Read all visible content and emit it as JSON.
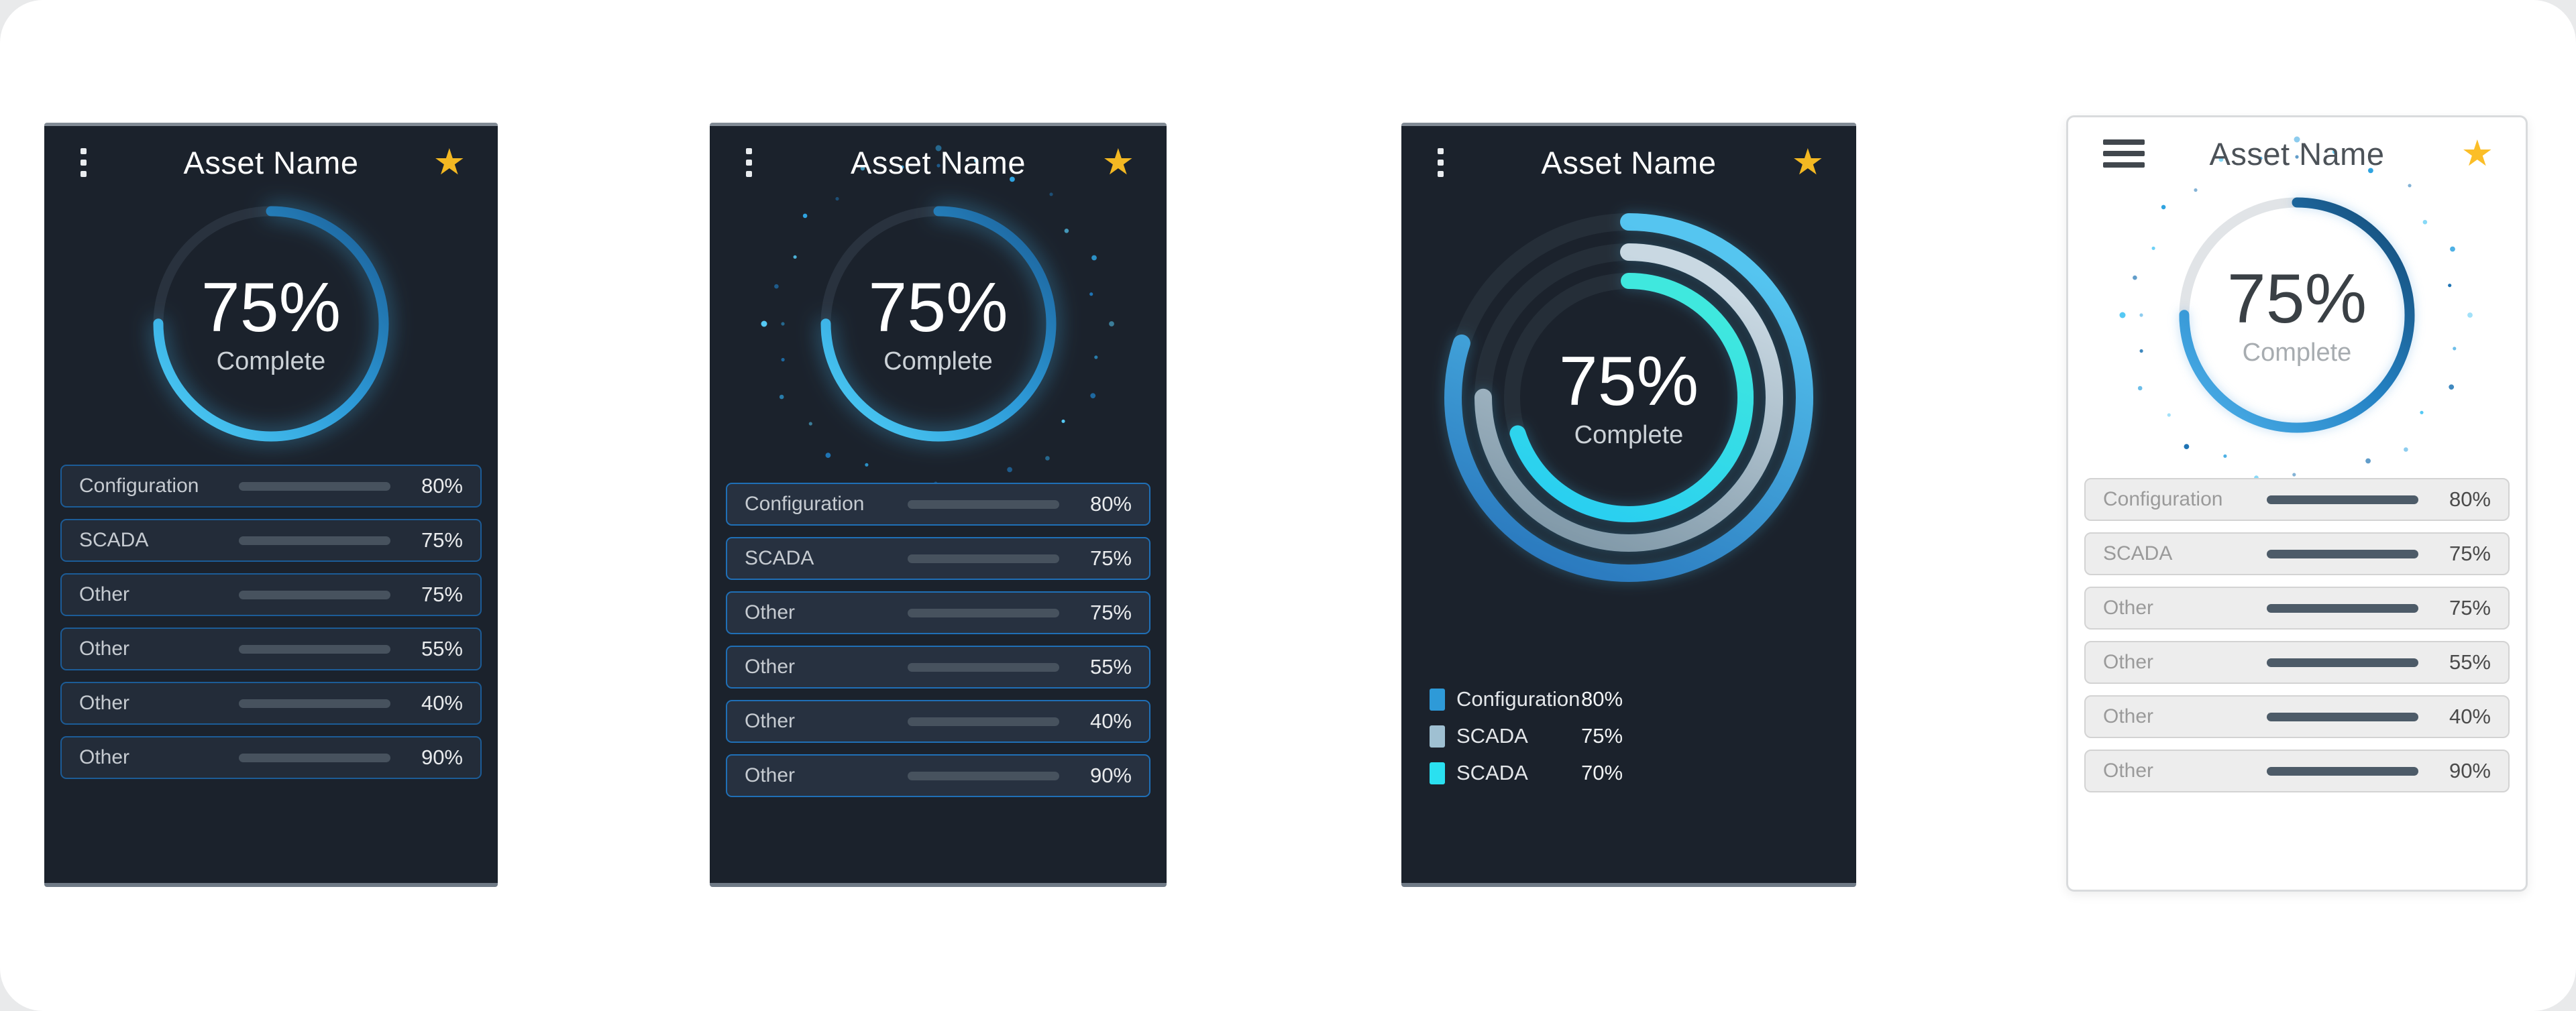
{
  "cards": [
    {
      "title": "Asset Name",
      "menu_icon": "kebab-menu",
      "star_icon": "star",
      "theme": "dark",
      "ring": {
        "percent": 75,
        "center_value": "75%",
        "center_label": "Complete",
        "style": "glow"
      },
      "rows": [
        {
          "label": "Configuration",
          "percent": 80,
          "value": "80%"
        },
        {
          "label": "SCADA",
          "percent": 75,
          "value": "75%"
        },
        {
          "label": "Other",
          "percent": 75,
          "value": "75%"
        },
        {
          "label": "Other",
          "percent": 55,
          "value": "55%"
        },
        {
          "label": "Other",
          "percent": 40,
          "value": "40%"
        },
        {
          "label": "Other",
          "percent": 90,
          "value": "90%"
        }
      ]
    },
    {
      "title": "Asset Name",
      "menu_icon": "kebab-menu",
      "star_icon": "star",
      "theme": "dark",
      "ring": {
        "percent": 75,
        "center_value": "75%",
        "center_label": "Complete",
        "style": "sparkle-dots"
      },
      "rows": [
        {
          "label": "Configuration",
          "percent": 80,
          "value": "80%"
        },
        {
          "label": "SCADA",
          "percent": 75,
          "value": "75%"
        },
        {
          "label": "Other",
          "percent": 75,
          "value": "75%"
        },
        {
          "label": "Other",
          "percent": 55,
          "value": "55%"
        },
        {
          "label": "Other",
          "percent": 40,
          "value": "40%"
        },
        {
          "label": "Other",
          "percent": 90,
          "value": "90%"
        }
      ]
    },
    {
      "title": "Asset Name",
      "menu_icon": "kebab-menu",
      "star_icon": "star",
      "theme": "dark",
      "donut": {
        "center_value": "75%",
        "center_label": "Complete",
        "series": [
          {
            "label": "Configuration",
            "percent": 80,
            "value": "80%",
            "color": "#2e9ad8"
          },
          {
            "label": "SCADA",
            "percent": 75,
            "value": "75%",
            "color": "#9fc0d2"
          },
          {
            "label": "SCADA",
            "percent": 70,
            "value": "70%",
            "color": "#2ae0f0"
          }
        ]
      }
    },
    {
      "title": "Asset Name",
      "menu_icon": "hamburger-menu",
      "star_icon": "star",
      "theme": "light",
      "ring": {
        "percent": 75,
        "center_value": "75%",
        "center_label": "Complete",
        "style": "sparkle-dots"
      },
      "rows": [
        {
          "label": "Configuration",
          "percent": 80,
          "value": "80%"
        },
        {
          "label": "SCADA",
          "percent": 75,
          "value": "75%"
        },
        {
          "label": "Other",
          "percent": 75,
          "value": "75%"
        },
        {
          "label": "Other",
          "percent": 55,
          "value": "55%"
        },
        {
          "label": "Other",
          "percent": 40,
          "value": "40%"
        },
        {
          "label": "Other",
          "percent": 90,
          "value": "90%"
        }
      ]
    }
  ],
  "colors": {
    "dark_card_bg": "#1b222c",
    "card_edge_gray": "#828b95",
    "row_bg_dark": "#232c39",
    "row_border_blue": "#1c5c97",
    "row_border_blue_bright": "#1f6fb6",
    "bar_track_dark": "#47525e",
    "bar_track_light": "#4d5b68",
    "bar_gradient_start": "#16395e",
    "bar_gradient_end": "#38b4ec",
    "ring_blue_dark": "#1a5c94",
    "ring_blue_bright": "#4fd0f7",
    "donut_outer_blue": "#2e9ad8",
    "donut_middle_silver": "#9fc0d2",
    "donut_inner_cyan": "#2ae0f0",
    "star_gold": "#f3b822",
    "light_row_bg": "#ededed",
    "text_light": "#fdfdfd",
    "text_muted_dark_theme": "#c6cbd1",
    "text_muted_light_theme": "#9a9a9a"
  }
}
